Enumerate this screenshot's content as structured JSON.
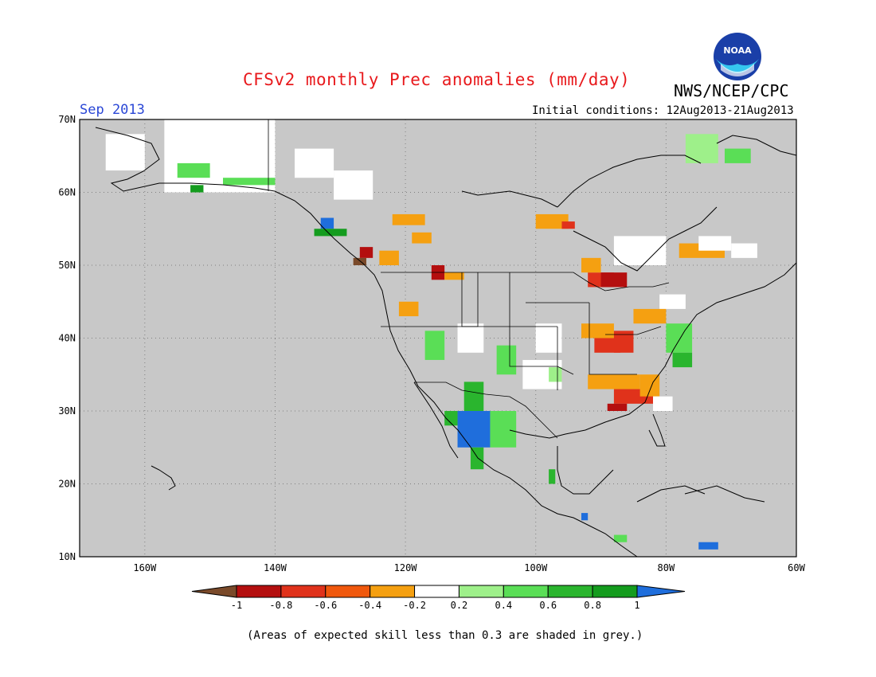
{
  "header": {
    "title": "CFSv2 monthly Prec anomalies (mm/day)",
    "agency": "NWS/NCEP/CPC",
    "period": "Sep 2013",
    "initial_conditions": "Initial conditions: 12Aug2013-21Aug2013"
  },
  "logo": {
    "icon": "noaa-logo-icon",
    "text": "NOAA"
  },
  "map": {
    "projection": "lat-lon",
    "lat_range": [
      10,
      70
    ],
    "lon_range": [
      -170,
      -60
    ],
    "lat_ticks": [
      "70N",
      "60N",
      "50N",
      "40N",
      "30N",
      "20N",
      "10N"
    ],
    "lon_ticks": [
      "160W",
      "140W",
      "120W",
      "100W",
      "80W",
      "60W"
    ],
    "background_color": "#c8c8c8",
    "grid": "dotted"
  },
  "colorbar": {
    "labels": [
      "-1",
      "-0.8",
      "-0.6",
      "-0.4",
      "-0.2",
      "0.2",
      "0.4",
      "0.6",
      "0.8",
      "1"
    ],
    "colors": [
      "#7a4a2a",
      "#b40f0f",
      "#e0321b",
      "#f0580d",
      "#f5a011",
      "#ffffff",
      "#9ef08a",
      "#5ade56",
      "#2ab52e",
      "#149c1e",
      "#1f6edc"
    ]
  },
  "footnote": "(Areas of expected skill less than 0.3 are shaded in grey.)"
}
